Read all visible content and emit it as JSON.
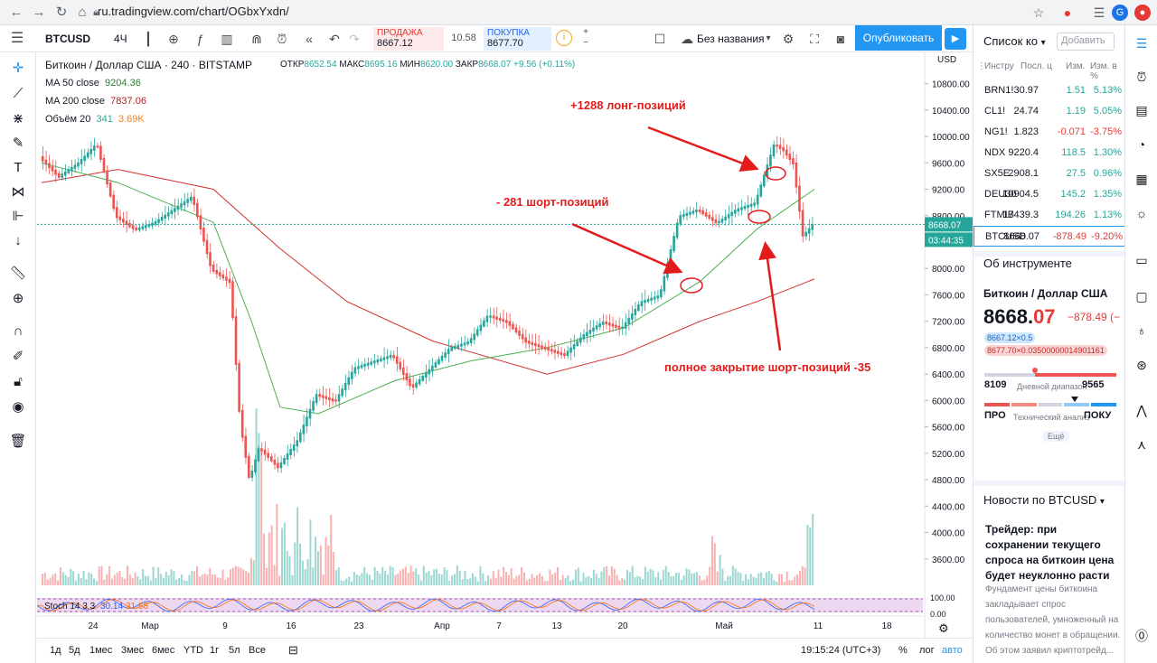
{
  "browser": {
    "url": "ru.tradingview.com/chart/OGbxYxdn/",
    "avatar_letter": "G"
  },
  "toolbar": {
    "symbol": "BTCUSD",
    "interval": "4Ч",
    "sell_label": "ПРОДАЖА",
    "sell_price": "8667.12",
    "spread": "10.58",
    "buy_label": "ПОКУПКА",
    "buy_price": "8677.70",
    "layout_name": "Без названия",
    "publish_label": "Опубликовать"
  },
  "legend": {
    "title": "Биткоин / Доллар США · 240 · BITSTAMP",
    "ma50_label": "MA 50 close",
    "ma50_value": "9204.36",
    "ma200_label": "MA 200 close",
    "ma200_value": "7837.06",
    "volume_label": "Объём 20",
    "volume_value1": "341",
    "volume_value2": "3.69K",
    "ohlc": {
      "o_label": "ОТКР",
      "o": "8652.54",
      "h_label": "МАКС",
      "h": "8695.16",
      "l_label": "МИН",
      "l": "8620.00",
      "c_label": "ЗАКР",
      "c": "8668.07",
      "change": "+9.56 (+0.11%)"
    }
  },
  "chart_data": {
    "type": "line",
    "title": "Биткоин / Доллар США · 240 · BITSTAMP",
    "currency_label": "USD",
    "ylim": [
      3200,
      11000
    ],
    "y_ticks": [
      10800,
      10400,
      10000,
      9600,
      9200,
      8800,
      8400,
      8000,
      7600,
      7200,
      6800,
      6400,
      6000,
      5600,
      5200,
      4800,
      4400,
      4000,
      3600
    ],
    "x_ticks": [
      "24",
      "Мар",
      "9",
      "16",
      "23",
      "Апр",
      "7",
      "13",
      "20",
      "Май",
      "11",
      "18"
    ],
    "current_price": "8668.07",
    "countdown": "03:44:35",
    "series": [
      {
        "name": "BTCUSD",
        "x": [
          "20 фев",
          "22 фев",
          "24 фев",
          "26 фев",
          "28 фев",
          "1 мар",
          "3 мар",
          "5 мар",
          "7 мар",
          "9 мар",
          "11 мар",
          "12 мар",
          "13 мар",
          "14 мар",
          "16 мар",
          "18 мар",
          "20 мар",
          "22 мар",
          "24 мар",
          "26 мар",
          "28 мар",
          "30 мар",
          "1 апр",
          "3 апр",
          "5 апр",
          "7 апр",
          "9 апр",
          "11 апр",
          "13 апр",
          "15 апр",
          "17 апр",
          "19 апр",
          "21 апр",
          "23 апр",
          "25 апр",
          "27 апр",
          "29 апр",
          "1 май",
          "3 май",
          "5 май",
          "7 май",
          "8 май",
          "9 май",
          "10 май",
          "11 май"
        ],
        "values": [
          9700,
          9400,
          9600,
          9900,
          8800,
          8600,
          8700,
          8900,
          9100,
          8000,
          7800,
          5700,
          4800,
          5300,
          5000,
          5400,
          6100,
          6000,
          6500,
          6600,
          6700,
          6200,
          6500,
          6800,
          6900,
          7300,
          7200,
          6900,
          6800,
          6700,
          7000,
          7200,
          7100,
          7500,
          7600,
          8800,
          8900,
          8700,
          8900,
          9000,
          9900,
          9800,
          9600,
          8500,
          8668
        ]
      },
      {
        "name": "MA 50 close",
        "x": [
          "20 фев",
          "28 фев",
          "9 мар",
          "13 мар",
          "16 мар",
          "20 мар",
          "28 мар",
          "5 апр",
          "13 апр",
          "21 апр",
          "29 апр",
          "5 май",
          "11 май"
        ],
        "values": [
          9600,
          9300,
          8700,
          7200,
          5900,
          5800,
          6300,
          6600,
          6800,
          7100,
          7800,
          8600,
          9200
        ]
      },
      {
        "name": "MA 200 close",
        "x": [
          "20 фев",
          "28 фев",
          "9 мар",
          "16 мар",
          "23 мар",
          "1 апр",
          "13 апр",
          "21 апр",
          "29 апр",
          "5 май",
          "11 май"
        ],
        "values": [
          9300,
          9500,
          9200,
          8300,
          7500,
          6900,
          6400,
          6700,
          7200,
          7500,
          7840
        ]
      }
    ],
    "annotations": [
      {
        "text": "+1288 лонг-позиций",
        "x": "5 май",
        "y": 9300
      },
      {
        "text": "- 281 шорт-позиций",
        "x": "27 апр",
        "y": 7650
      },
      {
        "text": "полное закрытие шорт-позиций -35",
        "x": "7 май",
        "y": 8700
      }
    ],
    "stoch_label": "Stoch 14 3 3",
    "stoch_k": "30.14",
    "stoch_d": "31.68",
    "stoch_ticks": [
      "100.00",
      "0.00"
    ]
  },
  "timeframes": [
    "1д",
    "5д",
    "1мес",
    "3мес",
    "6мес",
    "YTD",
    "1г",
    "5л",
    "Все"
  ],
  "bottom": {
    "time": "19:15:24 (UTC+3)",
    "percent": "%",
    "log": "лог",
    "auto": "авто"
  },
  "watchlist": {
    "title": "Список ко",
    "add_placeholder": "Добавить",
    "headers": [
      "Инстру",
      "Посл. ц",
      "Изм.",
      "Изм. в %"
    ],
    "rows": [
      {
        "sym": "BRN1!",
        "last": "30.97",
        "chg": "1.51",
        "pct": "5.13%",
        "dir": "up"
      },
      {
        "sym": "CL1!",
        "last": "24.74",
        "chg": "1.19",
        "pct": "5.05%",
        "dir": "up"
      },
      {
        "sym": "NG1!",
        "last": "1.823",
        "chg": "-0.071",
        "pct": "-3.75%",
        "dir": "dn"
      },
      {
        "sym": "NDX",
        "last": "9220.4",
        "chg": "118.5",
        "pct": "1.30%",
        "dir": "up"
      },
      {
        "sym": "SX5E",
        "last": "2908.1",
        "chg": "27.5",
        "pct": "0.96%",
        "dir": "up"
      },
      {
        "sym": "DEU30",
        "last": "10904.5",
        "chg": "145.2",
        "pct": "1.35%",
        "dir": "up"
      },
      {
        "sym": "FTMIB",
        "last": "17439.3",
        "chg": "194.26",
        "pct": "1.13%",
        "dir": "up"
      },
      {
        "sym": "BTCUSD",
        "last": "8668.07",
        "chg": "-878.49",
        "pct": "-9.20%",
        "dir": "dn"
      }
    ]
  },
  "about": {
    "title": "Об инструменте",
    "name": "Биткоин / Доллар США",
    "price": "8668.07",
    "change": "−878.49 (−",
    "bid_pill": "8667.12×0.5",
    "ask_pill": "8677.70×0.03500000014901161",
    "range_low": "8109",
    "range_label": "Дневной диапазон",
    "range_high": "9565",
    "ta_left": "ПРО",
    "ta_label": "Технический анализ",
    "ta_right": "ПОКУ",
    "more": "Ещё"
  },
  "news": {
    "title": "Новости по BTCUSD",
    "headline": "Трейдер: при сохранении текущего спроса на биткоин цена будет неуклонно расти",
    "body": "Фундамент цены биткоина закладывает спрос пользователей, умноженный на количество монет в обращении. Об этом заявил криптотрейд..."
  },
  "colors": {
    "up": "#26a69a",
    "down": "#ef5350",
    "ma50": "#4caf50",
    "ma200": "#d32f2f",
    "annotation": "#e41b1b",
    "accent": "#2196f3"
  }
}
